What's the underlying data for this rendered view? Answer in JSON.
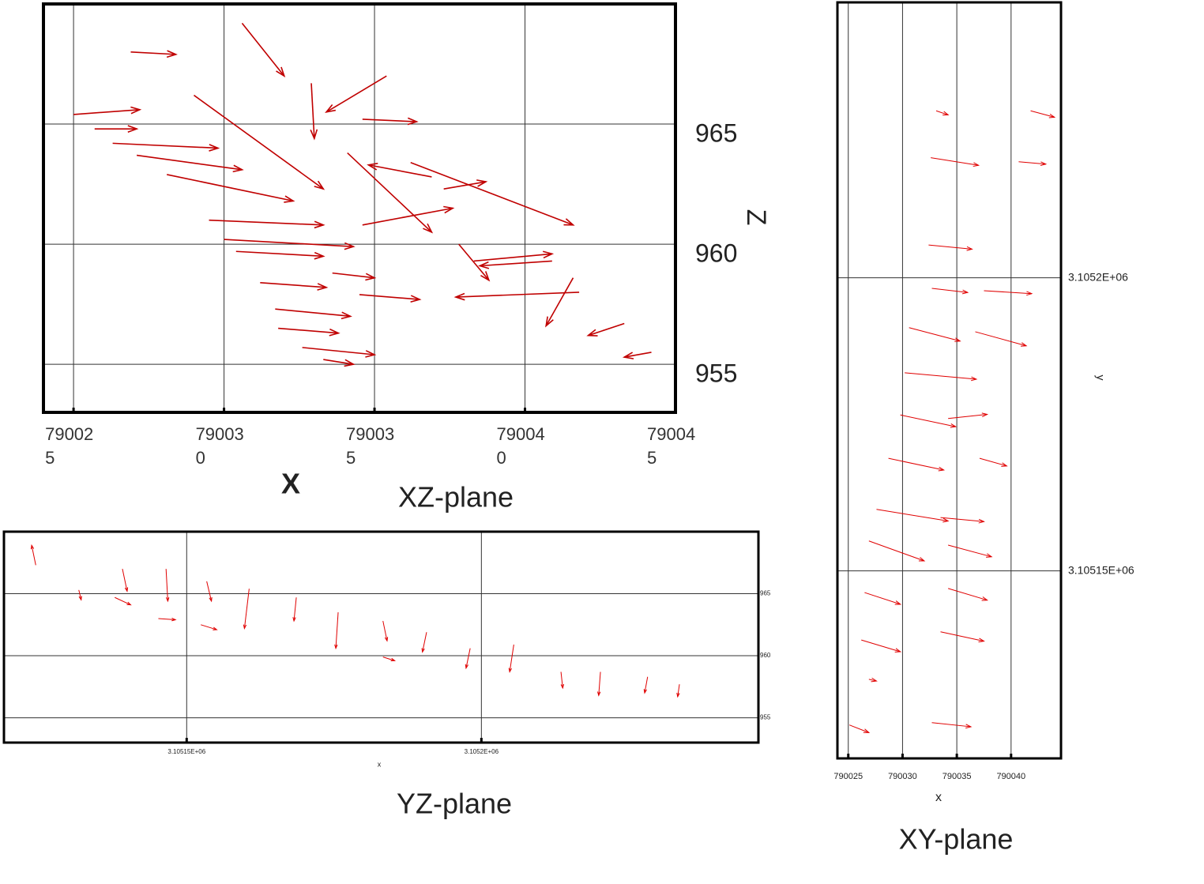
{
  "chart_data": [
    {
      "type": "quiver",
      "title": "XZ-plane",
      "xlabel": "X",
      "ylabel": "Z",
      "color": "#c00000",
      "grid": true,
      "xlim": [
        790024,
        790045
      ],
      "ylim": [
        953,
        970
      ],
      "xticks": [
        790025,
        790030,
        790035,
        790040,
        790045
      ],
      "yticks": [
        955,
        960,
        965
      ],
      "x": [
        790026.9,
        790025.0,
        790025.7,
        790026.3,
        790027.1,
        790028.1,
        790029.5,
        790030.0,
        790030.4,
        790031.2,
        790031.7,
        790031.8,
        790032.6,
        790033.3,
        790033.6,
        790034.5,
        790029.0,
        790030.6,
        790032.9,
        790035.4,
        790036.2,
        790034.1,
        790034.6,
        790040.9,
        790041.8,
        790041.6,
        790043.3,
        790044.2,
        790038.3,
        790037.3,
        790034.6,
        790037.8,
        790036.9
      ],
      "y": [
        968.0,
        965.4,
        964.8,
        964.2,
        963.7,
        962.9,
        961.0,
        960.2,
        959.7,
        958.4,
        957.3,
        956.5,
        955.7,
        955.2,
        958.8,
        957.9,
        966.2,
        969.2,
        966.7,
        967.0,
        963.4,
        963.8,
        960.8,
        959.3,
        958.0,
        958.6,
        956.7,
        955.5,
        959.3,
        962.3,
        965.2,
        960.0,
        962.8
      ],
      "u": [
        1.5,
        2.2,
        1.4,
        3.5,
        3.5,
        4.2,
        3.8,
        4.3,
        2.9,
        2.2,
        2.5,
        2.0,
        2.4,
        1.0,
        1.4,
        2.0,
        4.3,
        1.4,
        0.1,
        -2.0,
        5.4,
        2.8,
        3.0,
        -2.4,
        -4.1,
        -0.9,
        -1.2,
        -0.9,
        2.6,
        1.4,
        1.8,
        1.0,
        -2.1
      ],
      "v": [
        -0.1,
        0.2,
        0,
        -0.2,
        -0.6,
        -1.1,
        -0.2,
        -0.3,
        -0.2,
        -0.2,
        -0.3,
        -0.2,
        -0.3,
        -0.2,
        -0.2,
        -0.2,
        -3.9,
        -2.2,
        -2.3,
        -1.5,
        -2.6,
        -3.3,
        0.7,
        -0.2,
        -0.2,
        -2.0,
        -0.5,
        -0.2,
        0.3,
        0.3,
        -0.1,
        -1.5,
        0.5
      ]
    },
    {
      "type": "quiver",
      "title": "YZ-plane",
      "xlabel": "x",
      "color": "#e00000",
      "grid": true,
      "xlim": [
        3105119,
        3105247
      ],
      "ylim": [
        953,
        970
      ],
      "xticks": [
        {
          "value": 3105150,
          "label": "3.10515E+06"
        },
        {
          "value": 3105200,
          "label": "3.1052E+06"
        }
      ],
      "yticks": [
        955,
        960,
        965
      ],
      "x": [
        3105124.4,
        3105139.1,
        3105146.5,
        3105145.2,
        3105153.4,
        3105152.4,
        3105160.6,
        3105168.6,
        3105175.7,
        3105183.3,
        3105190.7,
        3105198.1,
        3105205.5,
        3105220.2,
        3105228.2,
        3105233.6,
        3105131.7,
        3105137.8,
        3105183.3,
        3105213.5
      ],
      "y": [
        967.3,
        967.0,
        967.0,
        963.0,
        966.0,
        962.5,
        965.4,
        964.7,
        963.5,
        962.8,
        961.9,
        960.6,
        960.9,
        958.7,
        958.3,
        957.7,
        965.3,
        964.7,
        959.9,
        958.7
      ],
      "u": [
        -0.7,
        0.8,
        0.3,
        2.9,
        0.8,
        2.7,
        -0.8,
        -0.4,
        -0.4,
        0.7,
        -0.7,
        -0.7,
        -0.7,
        -0.3,
        -0.5,
        -0.3,
        0.4,
        2.7,
        2.0,
        0.3
      ],
      "v": [
        1.6,
        -1.8,
        -2.6,
        -0.1,
        -1.6,
        -0.4,
        -3.2,
        -1.9,
        -2.9,
        -1.6,
        -1.6,
        -1.6,
        -2.2,
        -1.9,
        -1.3,
        -1.0,
        -0.8,
        -0.6,
        -0.3,
        -1.3
      ]
    },
    {
      "type": "quiver",
      "title": "XY-plane",
      "xlabel": "x",
      "ylabel": "y",
      "color": "#e00000",
      "grid": true,
      "xlim": [
        790024,
        790044.6
      ],
      "ylim": [
        3105118,
        3105247
      ],
      "xticks": [
        790025,
        790030,
        790035,
        790040
      ],
      "yticks": [
        {
          "value": 3105150,
          "label": "3.10515E+06"
        },
        {
          "value": 3105200,
          "label": "3.1052E+06"
        }
      ],
      "x": [
        790032.6,
        790040.7,
        790032.4,
        790032.7,
        790037.5,
        790030.6,
        790036.7,
        790030.2,
        790029.8,
        790034.2,
        790028.7,
        790037.1,
        790027.6,
        790033.5,
        790026.9,
        790034.2,
        790026.5,
        790034.2,
        790026.2,
        790033.5,
        790026.9,
        790025.1,
        790032.7,
        790033.1,
        790041.8
      ],
      "y": [
        3105220.5,
        3105219.8,
        3105205.6,
        3105198.2,
        3105197.8,
        3105191.5,
        3105190.8,
        3105183.8,
        3105176.6,
        3105176.0,
        3105169.2,
        3105169.2,
        3105160.5,
        3105159.1,
        3105155.1,
        3105154.4,
        3105146.3,
        3105147.0,
        3105138.2,
        3105139.6,
        3105131.5,
        3105123.7,
        3105124.1,
        3105228.5,
        3105228.5
      ],
      "u": [
        4.4,
        2.5,
        4.0,
        3.3,
        4.4,
        4.7,
        4.7,
        6.6,
        5.1,
        3.6,
        5.1,
        2.5,
        6.6,
        4.0,
        5.1,
        4.0,
        3.3,
        3.6,
        3.6,
        4.0,
        0.7,
        1.8,
        3.6,
        1.1,
        2.2
      ],
      "v": [
        -1.3,
        -0.4,
        -0.7,
        -0.7,
        -0.5,
        -2.3,
        -2.4,
        -1.1,
        -2.0,
        0.7,
        -2.0,
        -1.3,
        -2.0,
        -0.7,
        -3.4,
        -2.0,
        -2.0,
        -2.0,
        -2.0,
        -1.6,
        -0.3,
        -1.3,
        -0.7,
        -0.7,
        -1.1
      ]
    }
  ]
}
